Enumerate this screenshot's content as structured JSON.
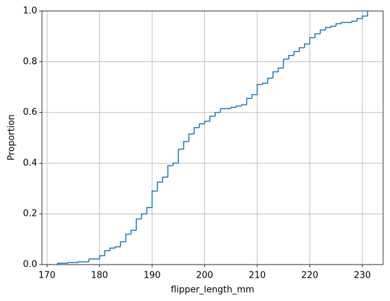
{
  "chart_data": {
    "type": "ecdf",
    "xlabel": "flipper_length_mm",
    "ylabel": "Proportion",
    "x": [
      172,
      174,
      176,
      178,
      180,
      181,
      182,
      183,
      184,
      185,
      186,
      187,
      188,
      189,
      190,
      191,
      192,
      193,
      194,
      195,
      196,
      197,
      198,
      199,
      200,
      201,
      202,
      203,
      205,
      206,
      207,
      208,
      209,
      210,
      211,
      212,
      213,
      214,
      215,
      216,
      217,
      218,
      219,
      220,
      221,
      222,
      223,
      224,
      225,
      226,
      228,
      229,
      230,
      231
    ],
    "series": [
      {
        "color": "#1f77b4",
        "values": [
          0.005,
          0.008,
          0.011,
          0.022,
          0.035,
          0.055,
          0.065,
          0.07,
          0.09,
          0.12,
          0.135,
          0.18,
          0.2,
          0.225,
          0.29,
          0.325,
          0.345,
          0.39,
          0.4,
          0.455,
          0.485,
          0.515,
          0.54,
          0.555,
          0.565,
          0.585,
          0.6,
          0.615,
          0.62,
          0.625,
          0.63,
          0.655,
          0.67,
          0.71,
          0.715,
          0.735,
          0.76,
          0.775,
          0.81,
          0.825,
          0.84,
          0.855,
          0.87,
          0.895,
          0.91,
          0.925,
          0.935,
          0.94,
          0.95,
          0.955,
          0.96,
          0.97,
          0.98,
          1
        ]
      }
    ],
    "xlim": [
      169.05,
      233.95
    ],
    "ylim": [
      0,
      1
    ],
    "xticks": [
      170,
      180,
      190,
      200,
      210,
      220,
      230
    ],
    "yticks": [
      {
        "value": 0,
        "label": "0.0"
      },
      {
        "value": 0.2,
        "label": "0.2"
      },
      {
        "value": 0.4,
        "label": "0.4"
      },
      {
        "value": 0.6,
        "label": "0.6"
      },
      {
        "value": 0.8,
        "label": "0.8"
      },
      {
        "value": 1,
        "label": "1.0"
      }
    ],
    "grid": true
  }
}
